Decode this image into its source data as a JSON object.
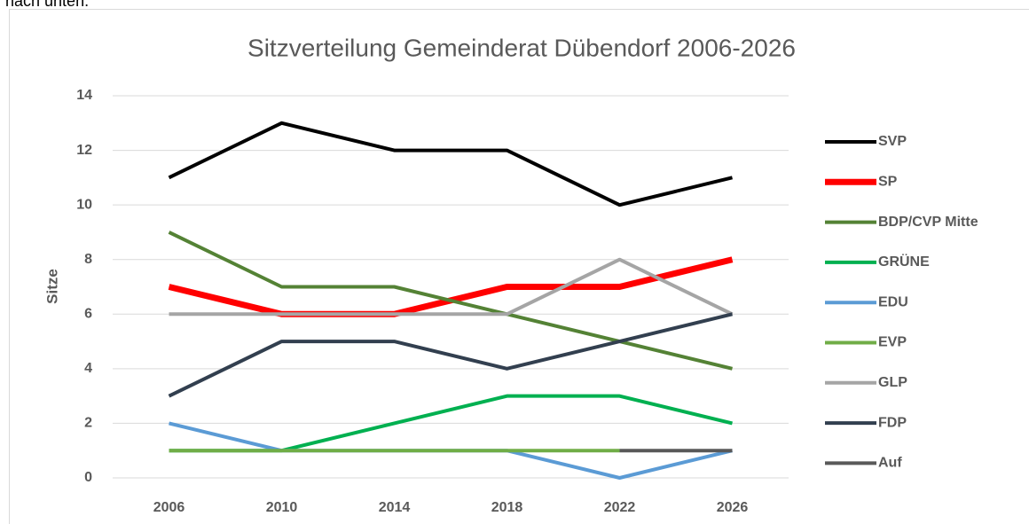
{
  "caption": "nach unten.",
  "chart_data": {
    "type": "line",
    "title": "Sitzverteilung Gemeinderat Dübendorf 2006-2026",
    "y_label": "Sitze",
    "categories": [
      "2006",
      "2010",
      "2014",
      "2018",
      "2022",
      "2026"
    ],
    "series": [
      {
        "name": "SVP",
        "color": "#000000",
        "line_width": 4,
        "values": [
          11,
          13,
          12,
          12,
          10,
          11
        ]
      },
      {
        "name": "SP",
        "color": "#ff0000",
        "line_width": 7,
        "values": [
          7,
          6,
          6,
          7,
          7,
          8
        ]
      },
      {
        "name": "BDP/CVP Mitte",
        "color": "#548235",
        "line_width": 4,
        "values": [
          9,
          7,
          7,
          6,
          5,
          4
        ]
      },
      {
        "name": "GRÜNE",
        "color": "#00b050",
        "line_width": 4,
        "values": [
          1,
          1,
          2,
          3,
          3,
          2
        ]
      },
      {
        "name": "EDU",
        "color": "#5b9bd5",
        "line_width": 4,
        "values": [
          2,
          1,
          1,
          1,
          0,
          1
        ]
      },
      {
        "name": "EVP",
        "color": "#70ad47",
        "line_width": 4,
        "values": [
          1,
          1,
          1,
          1,
          1,
          null
        ]
      },
      {
        "name": "GLP",
        "color": "#a5a5a5",
        "line_width": 4,
        "values": [
          6,
          6,
          6,
          6,
          8,
          6
        ]
      },
      {
        "name": "FDP",
        "color": "#323f4f",
        "line_width": 4,
        "values": [
          3,
          5,
          5,
          4,
          5,
          6
        ]
      },
      {
        "name": "Auf",
        "color": "#595959",
        "line_width": 4,
        "values": [
          null,
          null,
          null,
          null,
          1,
          1
        ]
      }
    ],
    "ylim": [
      0,
      14
    ],
    "yticks": [
      0,
      2,
      4,
      6,
      8,
      10,
      12,
      14
    ],
    "grid": true,
    "legend": "right"
  }
}
